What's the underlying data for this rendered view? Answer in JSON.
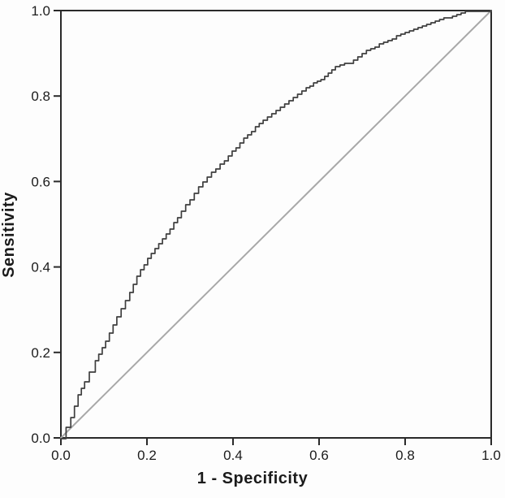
{
  "chart_data": {
    "type": "line",
    "title": "",
    "xlabel": "1 - Specificity",
    "ylabel": "Sensitivity",
    "xlim": [
      0.0,
      1.0
    ],
    "ylim": [
      0.0,
      1.0
    ],
    "x_ticks": [
      0.0,
      0.2,
      0.4,
      0.6,
      0.8,
      1.0
    ],
    "y_ticks": [
      0.0,
      0.2,
      0.4,
      0.6,
      0.8,
      1.0
    ],
    "grid": false,
    "legend": "none",
    "frame": true,
    "series": [
      {
        "name": "reference-diagonal",
        "color": "#a8a8a8",
        "stroke_width": 2,
        "style": "straight",
        "points": [
          [
            0.0,
            0.0
          ],
          [
            1.0,
            1.0
          ]
        ]
      },
      {
        "name": "roc-curve",
        "color": "#3f3f3f",
        "stroke_width": 1.7,
        "style": "staircase",
        "points": [
          [
            0.0,
            0.0
          ],
          [
            0.012,
            0.025
          ],
          [
            0.023,
            0.048
          ],
          [
            0.04,
            0.1
          ],
          [
            0.055,
            0.13
          ],
          [
            0.066,
            0.155
          ],
          [
            0.08,
            0.182
          ],
          [
            0.104,
            0.226
          ],
          [
            0.13,
            0.285
          ],
          [
            0.16,
            0.34
          ],
          [
            0.185,
            0.395
          ],
          [
            0.21,
            0.43
          ],
          [
            0.236,
            0.464
          ],
          [
            0.28,
            0.53
          ],
          [
            0.33,
            0.6
          ],
          [
            0.38,
            0.65
          ],
          [
            0.425,
            0.7
          ],
          [
            0.47,
            0.745
          ],
          [
            0.52,
            0.78
          ],
          [
            0.57,
            0.82
          ],
          [
            0.613,
            0.845
          ],
          [
            0.638,
            0.87
          ],
          [
            0.67,
            0.878
          ],
          [
            0.71,
            0.907
          ],
          [
            0.75,
            0.925
          ],
          [
            0.8,
            0.949
          ],
          [
            0.85,
            0.968
          ],
          [
            0.88,
            0.978
          ],
          [
            0.92,
            0.99
          ],
          [
            0.95,
            1.0
          ],
          [
            1.0,
            1.0
          ]
        ]
      }
    ]
  },
  "colors": {
    "frame": "#2a2a2a",
    "tick": "#2a2a2a",
    "tick_label": "#1c1c1c",
    "background": "#fdfdfd",
    "curve": "#3f3f3f",
    "diagonal": "#a8a8a8"
  }
}
